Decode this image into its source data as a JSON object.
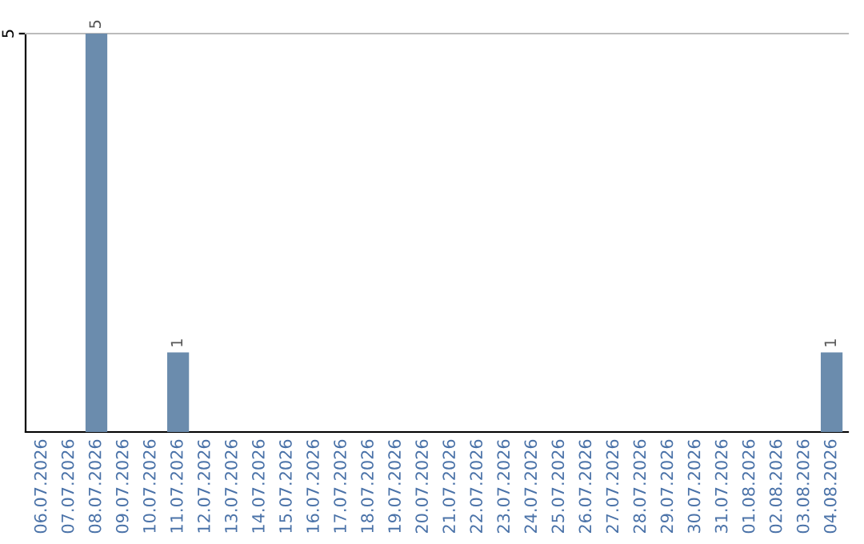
{
  "chart_data": {
    "type": "bar",
    "categories": [
      "06.07.2026",
      "07.07.2026",
      "08.07.2026",
      "09.07.2026",
      "10.07.2026",
      "11.07.2026",
      "12.07.2026",
      "13.07.2026",
      "14.07.2026",
      "15.07.2026",
      "16.07.2026",
      "17.07.2026",
      "18.07.2026",
      "19.07.2026",
      "20.07.2026",
      "21.07.2026",
      "22.07.2026",
      "23.07.2026",
      "24.07.2026",
      "25.07.2026",
      "26.07.2026",
      "27.07.2026",
      "28.07.2026",
      "29.07.2026",
      "30.07.2026",
      "31.07.2026",
      "01.08.2026",
      "02.08.2026",
      "03.08.2026",
      "04.08.2026"
    ],
    "values": [
      0,
      0,
      5,
      0,
      0,
      1,
      0,
      0,
      0,
      0,
      0,
      0,
      0,
      0,
      0,
      0,
      0,
      0,
      0,
      0,
      0,
      0,
      0,
      0,
      0,
      0,
      0,
      0,
      0,
      1
    ],
    "value_labels": [
      null,
      null,
      "5",
      null,
      null,
      "1",
      null,
      null,
      null,
      null,
      null,
      null,
      null,
      null,
      null,
      null,
      null,
      null,
      null,
      null,
      null,
      null,
      null,
      null,
      null,
      null,
      null,
      null,
      null,
      "1"
    ],
    "color": "#6b8cad",
    "ylim": [
      0,
      5
    ],
    "yticks": [
      5
    ]
  }
}
